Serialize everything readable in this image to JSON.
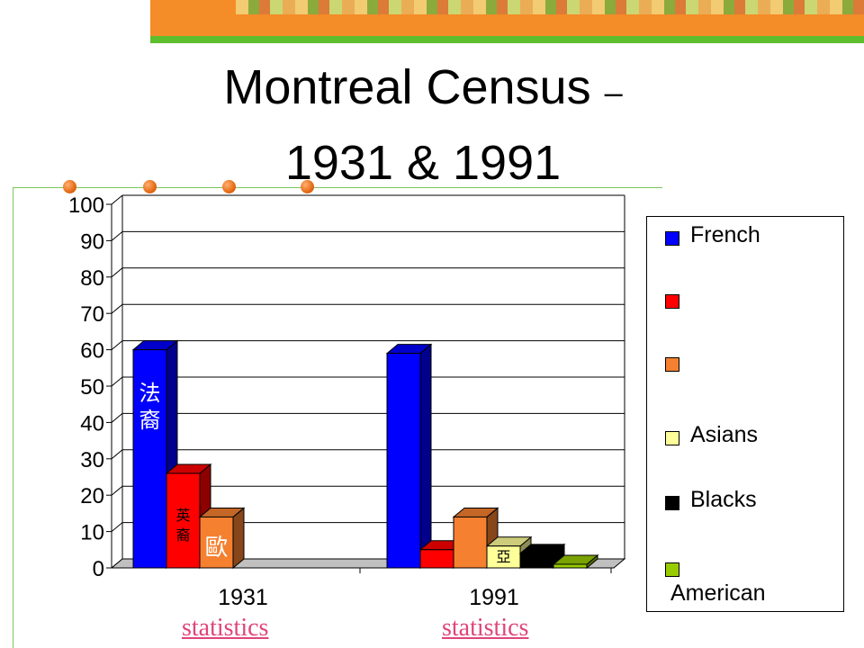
{
  "slide": {
    "title_line1": "Montreal Census",
    "title_dash": "–",
    "title_line2": "1931 & 1991",
    "accent_orange": "#f48c28",
    "accent_green": "#5fbe2d"
  },
  "links": [
    {
      "label": "statistics"
    },
    {
      "label": "statistics"
    }
  ],
  "chart_data": {
    "type": "bar",
    "categories": [
      "1931",
      "1991"
    ],
    "series": [
      {
        "name": "French",
        "color": "#0000ff",
        "values": [
          60,
          59
        ],
        "labels": [
          "法裔",
          ""
        ]
      },
      {
        "name": "",
        "color": "#ff0000",
        "values": [
          26,
          5
        ],
        "labels": [
          "英裔",
          ""
        ]
      },
      {
        "name": "",
        "color": "#f58030",
        "values": [
          14,
          14
        ],
        "labels": [
          "歐",
          ""
        ]
      },
      {
        "name": "Asians",
        "color": "#ffff99",
        "values": [
          0,
          6
        ],
        "labels": [
          "",
          "亞"
        ]
      },
      {
        "name": "Blacks",
        "color": "#000000",
        "values": [
          0,
          4
        ],
        "labels": [
          "",
          ""
        ]
      },
      {
        "name": "American",
        "color": "#99cc00",
        "values": [
          0,
          1
        ],
        "labels": [
          "",
          ""
        ]
      }
    ],
    "ylim": [
      0,
      100
    ],
    "yticks": [
      0,
      10,
      20,
      30,
      40,
      50,
      60,
      70,
      80,
      90,
      100
    ],
    "grid": true,
    "legend": "right",
    "three_d": true
  }
}
